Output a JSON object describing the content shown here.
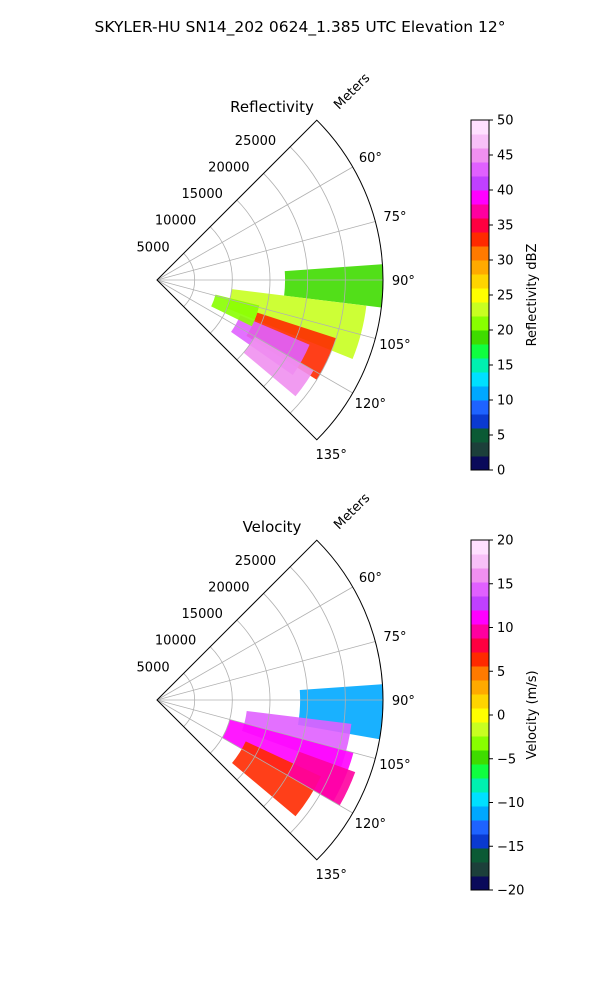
{
  "figure": {
    "suptitle": "SKYLER-HU  SN14_202  0624_1.385 UTC Elevation 12°"
  },
  "chart_data": [
    {
      "type": "heatmap",
      "subtype": "polar-sector",
      "title": "Reflectivity",
      "range_label": "Meters",
      "range_ticks": [
        5000,
        10000,
        15000,
        20000,
        25000
      ],
      "rlim": [
        0,
        30000
      ],
      "azimuth_ticks": [
        "60°",
        "75°",
        "90°",
        "105°",
        "120°",
        "135°"
      ],
      "azimuth_tick_values": [
        60,
        75,
        90,
        105,
        120,
        135
      ],
      "azimuth_range": [
        45,
        135
      ],
      "colorbar": {
        "label": "Reflectivity dBZ",
        "range": [
          0,
          50
        ],
        "ticks": [
          "0",
          "5",
          "10",
          "15",
          "20",
          "25",
          "30",
          "35",
          "40",
          "45",
          "50"
        ],
        "colormap": [
          "#0a0a5a",
          "#1c3f3a",
          "#0b5a35",
          "#0a3ad0",
          "#1e63ff",
          "#00a8ff",
          "#00e0ff",
          "#00f0b0",
          "#10ff40",
          "#3fdc00",
          "#88ff00",
          "#c8ff20",
          "#ffff00",
          "#ffd500",
          "#ffaa00",
          "#ff7a00",
          "#ff2a00",
          "#ff0040",
          "#ff00a0",
          "#ff00ff",
          "#c040ff",
          "#e060ff",
          "#f090f0",
          "#f8c0f8",
          "#ffe0ff"
        ]
      },
      "echo_regions": [
        {
          "az": [
            86,
            97
          ],
          "r": [
            17000,
            30000
          ],
          "value": 18
        },
        {
          "az": [
            97,
            112
          ],
          "r": [
            10000,
            28000
          ],
          "value": 22
        },
        {
          "az": [
            108,
            122
          ],
          "r": [
            14000,
            25000
          ],
          "value": 32
        },
        {
          "az": [
            113,
            125
          ],
          "r": [
            12000,
            22000
          ],
          "value": 42
        },
        {
          "az": [
            120,
            130
          ],
          "r": [
            15000,
            24000
          ],
          "value": 45
        },
        {
          "az": [
            104,
            116
          ],
          "r": [
            8000,
            14000
          ],
          "value": 20
        }
      ]
    },
    {
      "type": "heatmap",
      "subtype": "polar-sector",
      "title": "Velocity",
      "range_label": "Meters",
      "range_ticks": [
        5000,
        10000,
        15000,
        20000,
        25000
      ],
      "rlim": [
        0,
        30000
      ],
      "azimuth_ticks": [
        "60°",
        "75°",
        "90°",
        "105°",
        "120°",
        "135°"
      ],
      "azimuth_tick_values": [
        60,
        75,
        90,
        105,
        120,
        135
      ],
      "azimuth_range": [
        45,
        135
      ],
      "colorbar": {
        "label": "Velocity (m/s)",
        "range": [
          -20,
          20
        ],
        "ticks": [
          "−20",
          "−15",
          "−10",
          "−5",
          "0",
          "5",
          "10",
          "15",
          "20"
        ],
        "colormap": [
          "#0a0a5a",
          "#1c3f3a",
          "#0b5a35",
          "#0a3ad0",
          "#1e63ff",
          "#00a8ff",
          "#00e0ff",
          "#00f0b0",
          "#10ff40",
          "#3fdc00",
          "#88ff00",
          "#c8ff20",
          "#ffff00",
          "#ffd500",
          "#ffaa00",
          "#ff7a00",
          "#ff2a00",
          "#ff0040",
          "#ff00a0",
          "#ff00ff",
          "#c040ff",
          "#e060ff",
          "#f090f0",
          "#f8c0f8",
          "#ffe0ff"
        ]
      },
      "echo_regions": [
        {
          "az": [
            86,
            100
          ],
          "r": [
            19000,
            30000
          ],
          "value": -11
        },
        {
          "az": [
            97,
            110
          ],
          "r": [
            12000,
            26000
          ],
          "value": 14
        },
        {
          "az": [
            105,
            120
          ],
          "r": [
            10000,
            27000
          ],
          "value": 11
        },
        {
          "az": [
            115,
            130
          ],
          "r": [
            13000,
            24000
          ],
          "value": 7
        },
        {
          "az": [
            110,
            120
          ],
          "r": [
            20000,
            28000
          ],
          "value": 9
        }
      ]
    }
  ]
}
